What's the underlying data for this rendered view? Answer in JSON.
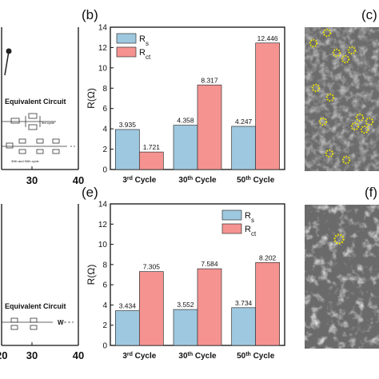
{
  "panel_labels": {
    "b": "(b)",
    "c": "(c)",
    "e": "(e)",
    "f": "(f)"
  },
  "left_panels": {
    "top": {
      "eq_title": "Equivalent Circuit",
      "x_ticks": [
        "30",
        "40"
      ],
      "circuit_note_1": "3rd cycle",
      "circuit_note_2": "30th and 50th cycle"
    },
    "bottom": {
      "eq_title": "Equivalent Circuit",
      "x_ticks": [
        "20",
        "30",
        "40"
      ],
      "w_label": "W"
    }
  },
  "chart_data": [
    {
      "type": "bar",
      "panel": "(b)",
      "categories": [
        "3rd Cycle",
        "30th Cycle",
        "50th Cycle"
      ],
      "series": [
        {
          "name": "Rs",
          "values": [
            3.935,
            4.358,
            4.247
          ],
          "color": "#9ec8df"
        },
        {
          "name": "Rct",
          "values": [
            1.721,
            8.317,
            12.446
          ],
          "color": "#f59391"
        }
      ],
      "ylabel": "R(Ω)",
      "ylim": [
        0,
        14
      ],
      "yticks": [
        0,
        2,
        4,
        6,
        8,
        10,
        12,
        14
      ],
      "value_labels": [
        "3.935",
        "1.721",
        "4.358",
        "8.317",
        "4.247",
        "12.446"
      ],
      "legend": "top-left",
      "grid": false
    },
    {
      "type": "bar",
      "panel": "(e)",
      "categories": [
        "3rd Cycle",
        "30th Cycle",
        "50th Cycle"
      ],
      "series": [
        {
          "name": "Rs",
          "values": [
            3.434,
            3.552,
            3.734
          ],
          "color": "#9ec8df"
        },
        {
          "name": "Rct",
          "values": [
            7.305,
            7.584,
            8.202
          ],
          "color": "#f59391"
        }
      ],
      "ylabel": "R(Ω)",
      "ylim": [
        0,
        14
      ],
      "yticks": [
        0,
        2,
        4,
        6,
        8,
        10,
        12,
        14
      ],
      "value_labels": [
        "3.434",
        "7.305",
        "3.552",
        "7.584",
        "3.734",
        "8.202"
      ],
      "legend": "top-right",
      "grid": false
    }
  ],
  "cycle_labels": [
    {
      "num": "3",
      "sup": "rd",
      "rest": " Cycle"
    },
    {
      "num": "30",
      "sup": "th",
      "rest": " Cycle"
    },
    {
      "num": "50",
      "sup": "th",
      "rest": " Cycle"
    }
  ],
  "legend_text": {
    "rs_main": "R",
    "rs_sub": "s",
    "rct_main": "R",
    "rct_sub": "ct"
  },
  "colors": {
    "sem_bg": "#6c6c6c",
    "marker": "#f2e600"
  }
}
